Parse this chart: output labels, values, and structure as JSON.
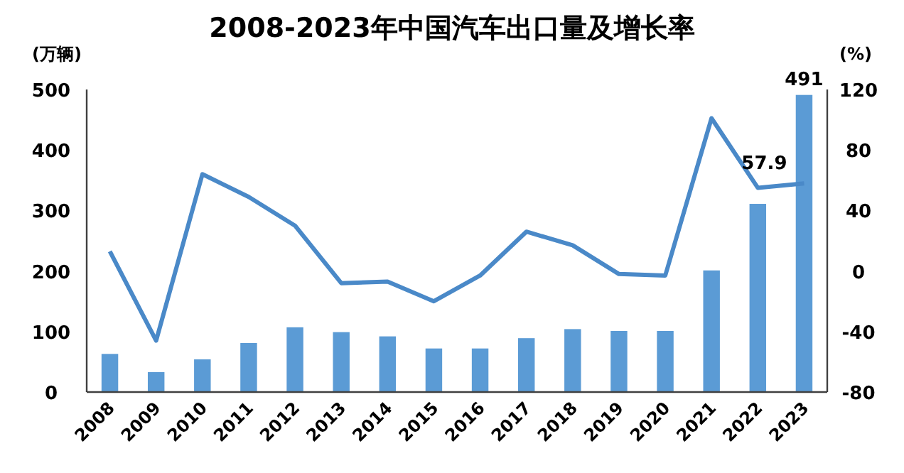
{
  "chart_data": {
    "type": "bar",
    "title": "2008-2023年中国汽车出口量及增长率",
    "ylabel": "(万辆)",
    "y2label": "(%)",
    "categories": [
      "2008",
      "2009",
      "2010",
      "2011",
      "2012",
      "2013",
      "2014",
      "2015",
      "2016",
      "2017",
      "2018",
      "2019",
      "2020",
      "2021",
      "2022",
      "2023"
    ],
    "series": [
      {
        "color": "#5b9bd5",
        "values": [
          63,
          33,
          54,
          81,
          107,
          99,
          92,
          72,
          72,
          89,
          104,
          101,
          101,
          201,
          311,
          491
        ],
        "value_labels": [
          null,
          null,
          null,
          null,
          null,
          null,
          null,
          null,
          null,
          null,
          null,
          null,
          null,
          null,
          null,
          "491"
        ]
      },
      {
        "type": "line",
        "axis": "y2",
        "color": "#4a89c8",
        "values": [
          13,
          -46,
          64,
          49,
          30,
          -8,
          -7,
          -20,
          -3,
          26,
          17,
          -2,
          -3,
          101,
          55,
          57.9
        ],
        "value_labels": [
          null,
          null,
          null,
          null,
          null,
          null,
          null,
          null,
          null,
          null,
          null,
          null,
          null,
          null,
          null,
          "57.9"
        ]
      }
    ],
    "ylim": [
      0,
      500
    ],
    "yticks": [
      0,
      100,
      200,
      300,
      400,
      500
    ],
    "y2lim": [
      -80,
      120
    ],
    "y2ticks": [
      -80,
      -40,
      0,
      40,
      80,
      120
    ],
    "grid": false,
    "marker": "none",
    "line_style": "solid"
  }
}
